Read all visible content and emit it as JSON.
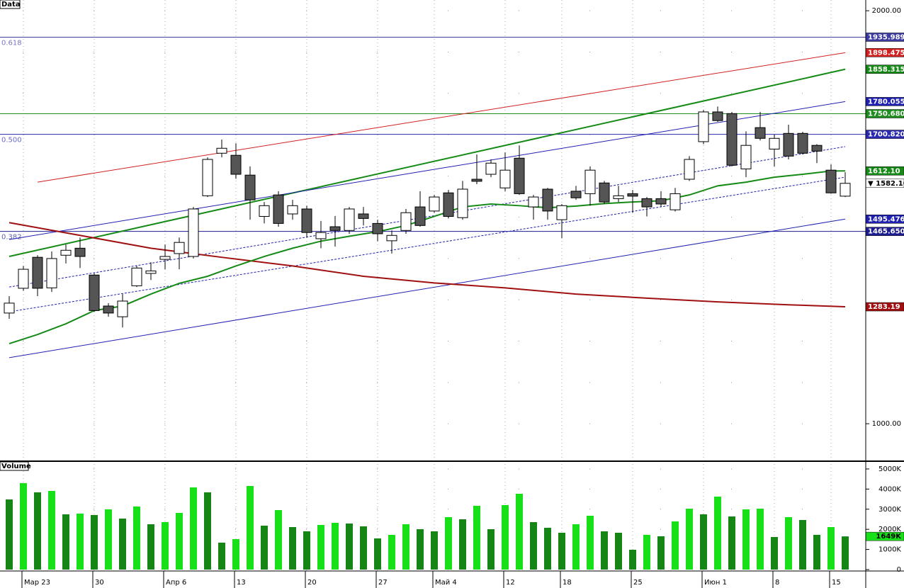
{
  "chart_data": [
    {
      "type": "candlestick",
      "title": "Data",
      "open": [
        1268,
        1328,
        1403,
        1329,
        1408,
        1425,
        1360,
        1285,
        1259,
        1334,
        1364,
        1398,
        1412,
        1405,
        1552,
        1655,
        1650,
        1602,
        1502,
        1554,
        1508,
        1520,
        1448,
        1477,
        1468,
        1508,
        1485,
        1443,
        1468,
        1525,
        1515,
        1559,
        1499,
        1592,
        1604,
        1571,
        1643,
        1525,
        1568,
        1494,
        1563,
        1557,
        1583,
        1545,
        1557,
        1545,
        1545,
        1518,
        1592,
        1683,
        1755,
        1751,
        1617,
        1717,
        1665,
        1703,
        1703,
        1674,
        1614,
        1551
      ],
      "high": [
        1309,
        1382,
        1408,
        1417,
        1434,
        1451,
        1364,
        1292,
        1314,
        1382,
        1391,
        1434,
        1451,
        1525,
        1645,
        1688,
        1679,
        1623,
        1537,
        1563,
        1542,
        1528,
        1491,
        1503,
        1525,
        1525,
        1494,
        1468,
        1520,
        1563,
        1554,
        1566,
        1588,
        1652,
        1640,
        1657,
        1674,
        1554,
        1571,
        1532,
        1576,
        1623,
        1588,
        1576,
        1566,
        1549,
        1563,
        1571,
        1648,
        1760,
        1768,
        1755,
        1708,
        1755,
        1700,
        1724,
        1707,
        1677,
        1628,
        1609
      ],
      "low": [
        1254,
        1322,
        1309,
        1319,
        1388,
        1377,
        1271,
        1259,
        1233,
        1331,
        1348,
        1374,
        1374,
        1400,
        1549,
        1645,
        1593,
        1494,
        1485,
        1477,
        1494,
        1451,
        1425,
        1429,
        1460,
        1480,
        1442,
        1412,
        1460,
        1477,
        1511,
        1497,
        1494,
        1580,
        1597,
        1563,
        1554,
        1494,
        1494,
        1449,
        1542,
        1528,
        1532,
        1537,
        1511,
        1502,
        1525,
        1514,
        1588,
        1677,
        1731,
        1623,
        1597,
        1686,
        1623,
        1640,
        1652,
        1631,
        1557,
        1549
      ],
      "close": [
        1292,
        1374,
        1328,
        1400,
        1420,
        1405,
        1274,
        1268,
        1297,
        1377,
        1370,
        1405,
        1439,
        1520,
        1640,
        1667,
        1604,
        1542,
        1528,
        1485,
        1528,
        1463,
        1463,
        1468,
        1520,
        1497,
        1460,
        1456,
        1511,
        1480,
        1549,
        1502,
        1568,
        1587,
        1631,
        1614,
        1557,
        1549,
        1515,
        1528,
        1547,
        1614,
        1537,
        1552,
        1551,
        1525,
        1532,
        1557,
        1640,
        1755,
        1734,
        1626,
        1674,
        1691,
        1691,
        1648,
        1655,
        1660,
        1559,
        1582.1
      ],
      "up_color": "#ffffff",
      "down_color": "#555555",
      "last_label": "▼ 1582.10",
      "ylim": [
        911,
        2026
      ],
      "yticks": [
        {
          "value": 1000,
          "label": "1000.00"
        },
        {
          "value": 2000,
          "label": "2000.00"
        }
      ],
      "grid_yticks": [
        1000,
        1100,
        1200,
        1300,
        1400,
        1500,
        1600,
        1700,
        1800,
        1900,
        2000
      ],
      "hlines": [
        {
          "value": 1935.9892,
          "color": "#3c3ca0",
          "fib_label": "0.618",
          "end_label": "1935.9892"
        },
        {
          "value": 1750.68,
          "color": "#1e8c1e",
          "end_label": "1750.6800"
        },
        {
          "value": 1700.82,
          "color": "#2a2ab0",
          "fib_label": "0.500",
          "end_label": "1700.8200"
        },
        {
          "value": 1465.6508,
          "color": "#1c1c90",
          "fib_label": "0.382",
          "end_label": "1465.6508"
        }
      ],
      "lines": [
        {
          "x": [
            2,
            59
          ],
          "values": [
            1585,
            1898.4756
          ],
          "color": "#d02020",
          "style": "thin",
          "end_label": "1898.4756"
        },
        {
          "x": [
            0,
            59
          ],
          "values": [
            1405,
            1858.3154
          ],
          "color": "#168a16",
          "style": "bold",
          "end_label": "1858.3154"
        },
        {
          "x": [
            0,
            59
          ],
          "values": [
            1446,
            1780.055
          ],
          "color": "#2020b0",
          "style": "thin",
          "end_label": "1780.0550"
        },
        {
          "x": [
            0,
            59
          ],
          "values": [
            1331,
            1671
          ],
          "color": "#2020b0",
          "style": "dashed"
        },
        {
          "x": [
            0,
            59
          ],
          "values": [
            1271,
            1597
          ],
          "color": "#2020b0",
          "style": "dashed"
        },
        {
          "x": [
            0,
            59
          ],
          "values": [
            1160,
            1495.4766
          ],
          "color": "#2020b0",
          "style": "thin",
          "end_label": "1495.4766"
        },
        {
          "x": [
            0,
            5,
            10,
            15,
            20,
            25,
            30,
            35,
            40,
            45,
            50,
            55,
            59
          ],
          "values": [
            1487,
            1456,
            1425,
            1403,
            1382,
            1357,
            1341,
            1329,
            1314,
            1304,
            1295,
            1288,
            1283.19
          ],
          "color": "#a01010",
          "style": "bold",
          "end_label": "1283.19"
        },
        {
          "x": [
            0,
            2,
            4,
            6,
            8,
            10,
            12,
            14,
            16,
            18,
            20,
            22,
            24,
            26,
            28,
            30,
            32,
            34,
            36,
            38,
            40,
            42,
            44,
            46,
            48,
            50,
            52,
            54,
            56,
            58,
            59
          ],
          "values": [
            1194,
            1216,
            1242,
            1274,
            1285,
            1314,
            1340,
            1357,
            1382,
            1405,
            1425,
            1442,
            1454,
            1465,
            1480,
            1502,
            1525,
            1532,
            1528,
            1523,
            1527,
            1533,
            1537,
            1540,
            1554,
            1576,
            1585,
            1597,
            1604,
            1612,
            1612.1
          ],
          "color": "#168a16",
          "style": "bold",
          "end_label": "1612.10"
        }
      ]
    },
    {
      "type": "bar",
      "title": "Volume",
      "categories": [
        null,
        "Мар 23",
        null,
        null,
        null,
        null,
        "30",
        null,
        null,
        null,
        null,
        "Апр 6",
        null,
        null,
        null,
        null,
        "13",
        null,
        null,
        null,
        null,
        "20",
        null,
        null,
        null,
        null,
        "27",
        null,
        null,
        null,
        "Май 4",
        null,
        null,
        null,
        null,
        "12",
        null,
        null,
        null,
        "18",
        null,
        null,
        null,
        null,
        "25",
        null,
        null,
        null,
        null,
        "Июн 1",
        null,
        null,
        null,
        null,
        "8",
        null,
        null,
        null,
        "15",
        null
      ],
      "values": [
        3485,
        4294,
        3837,
        3907,
        2746,
        2781,
        2710,
        2992,
        2534,
        3133,
        2253,
        2358,
        2816,
        4083,
        3837,
        1338,
        1514,
        4154,
        2182,
        2957,
        2112,
        1901,
        2218,
        2323,
        2288,
        2147,
        1549,
        1725,
        2253,
        2006,
        1901,
        2605,
        2499,
        3168,
        2006,
        3203,
        3766,
        2358,
        2077,
        1830,
        2253,
        2675,
        1901,
        1830,
        986,
        1725,
        1654,
        2394,
        3027,
        2746,
        3626,
        2640,
        2992,
        3027,
        1619,
        2605,
        2464,
        1725,
        2112,
        1649
      ],
      "up_color": "#18e018",
      "down_color": "#158515",
      "last_label": "1649K",
      "ylim": [
        0,
        5350
      ],
      "yticks": [
        0,
        {
          "value": 1000,
          "label": "1000K"
        },
        {
          "value": 2000,
          "label": "2000K"
        },
        {
          "value": 3000,
          "label": "3000K"
        },
        {
          "value": 4000,
          "label": "4000K"
        },
        {
          "value": 5000,
          "label": "5000K"
        }
      ]
    }
  ]
}
